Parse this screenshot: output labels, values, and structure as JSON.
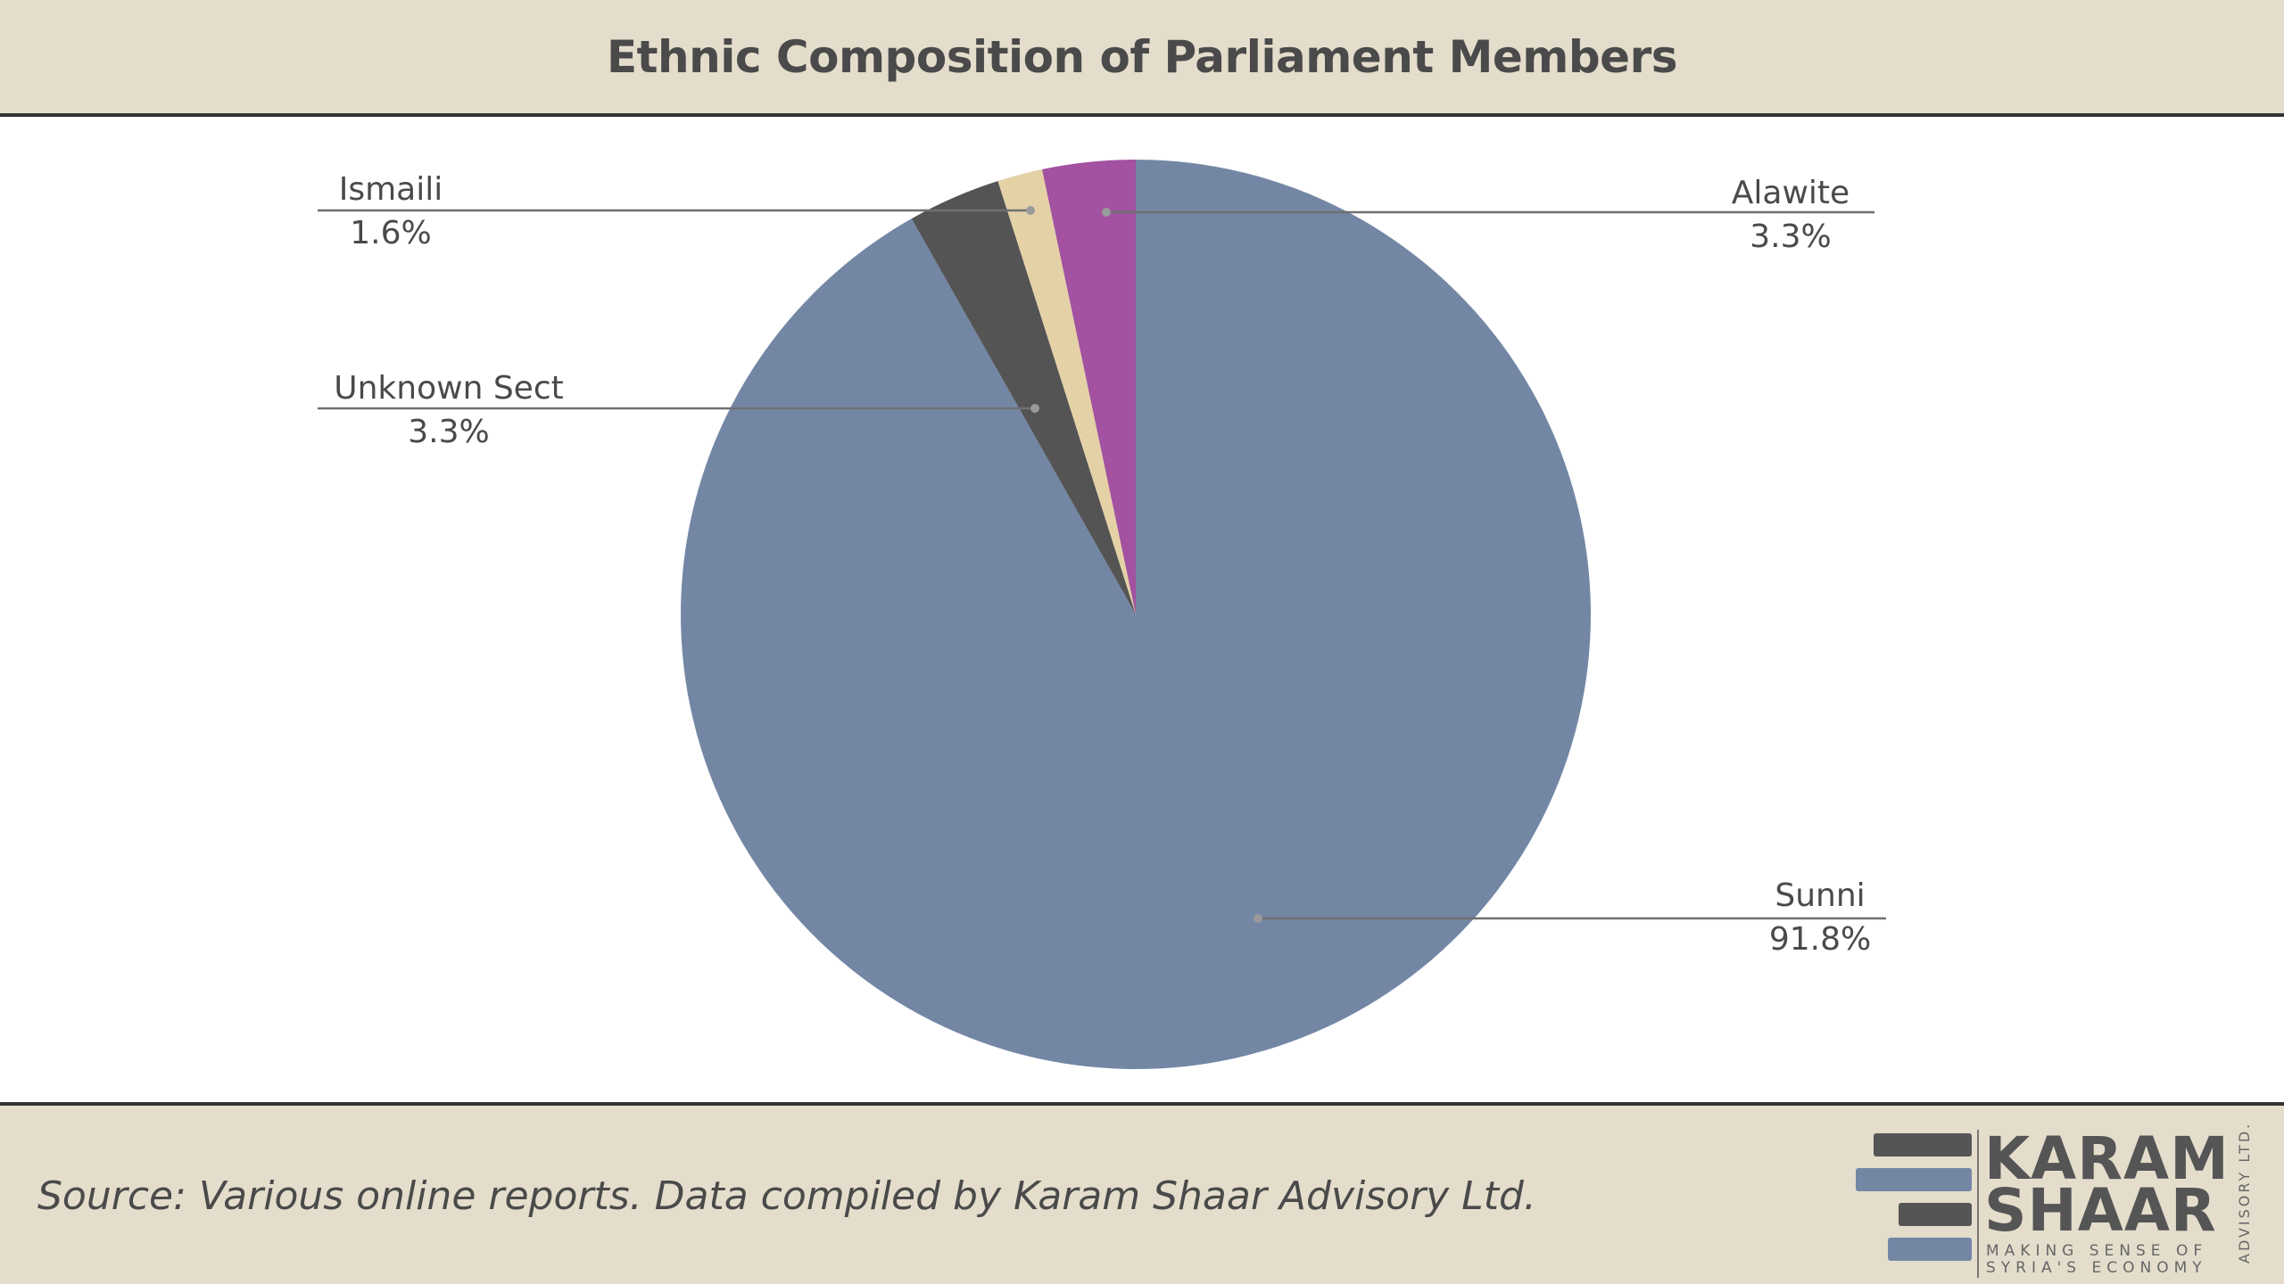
{
  "header": {
    "title": "Ethnic Composition of Parliament Members"
  },
  "chart_data": {
    "type": "pie",
    "title": "Ethnic Composition of Parliament Members",
    "slices": [
      {
        "name": "Sunni",
        "value": 91.8,
        "label": "91.8%",
        "color": "#7387a5"
      },
      {
        "name": "Unknown Sect",
        "value": 3.3,
        "label": "3.3%",
        "color": "#545454"
      },
      {
        "name": "Ismaili",
        "value": 1.6,
        "label": "1.6%",
        "color": "#e4d1a6"
      },
      {
        "name": "Alawite",
        "value": 3.3,
        "label": "3.3%",
        "color": "#a252a0"
      }
    ],
    "start": "12 o'clock",
    "direction": "clockwise"
  },
  "footer": {
    "source": "Source: Various online reports. Data compiled by Karam Shaar Advisory Ltd."
  },
  "logo": {
    "line1": "KARAM",
    "line2": "SHAAR",
    "tagline1": "MAKING SENSE OF",
    "tagline2": "SYRIA'S ECONOMY",
    "vertical": "ADVISORY LTD.",
    "bar_colors": [
      "#555555",
      "#7387a5",
      "#555555",
      "#7387a5"
    ]
  },
  "colors": {
    "band": "#e4ddcc",
    "rule": "#333333",
    "text": "#4a4a4a"
  }
}
